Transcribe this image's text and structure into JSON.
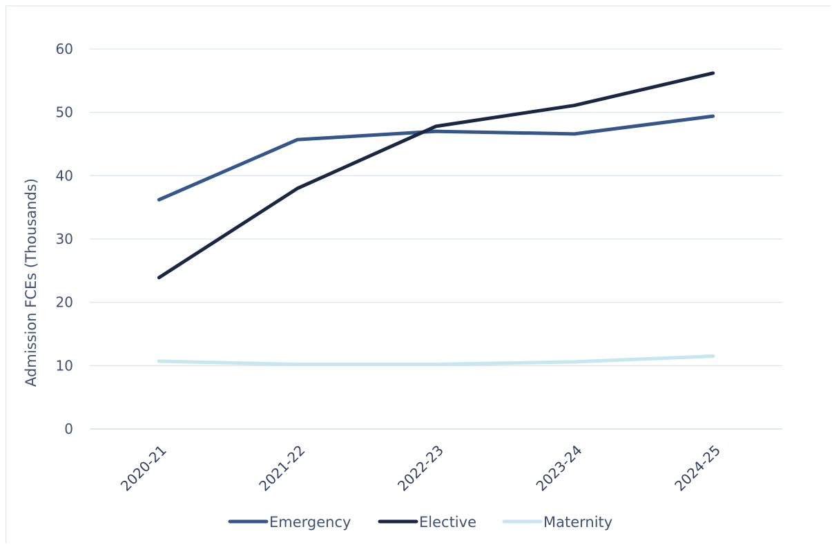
{
  "chart_data": {
    "type": "line",
    "title": "",
    "xlabel": "",
    "ylabel": "Admission FCEs (Thousands)",
    "categories": [
      "2020-21",
      "2021-22",
      "2022-23",
      "2023-24",
      "2024-25"
    ],
    "ylim": [
      0,
      60
    ],
    "yticks": [
      0,
      10,
      20,
      30,
      40,
      50,
      60
    ],
    "grid": true,
    "legend_position": "bottom",
    "series": [
      {
        "name": "Emergency",
        "color": "#34568b",
        "values": [
          36.2,
          45.7,
          47.0,
          46.6,
          49.4
        ]
      },
      {
        "name": "Elective",
        "color": "#1a2742",
        "values": [
          23.9,
          38.0,
          47.8,
          51.1,
          56.2
        ]
      },
      {
        "name": "Maternity",
        "color": "#c6e6f0",
        "values": [
          10.7,
          10.2,
          10.2,
          10.6,
          11.5
        ]
      }
    ]
  }
}
